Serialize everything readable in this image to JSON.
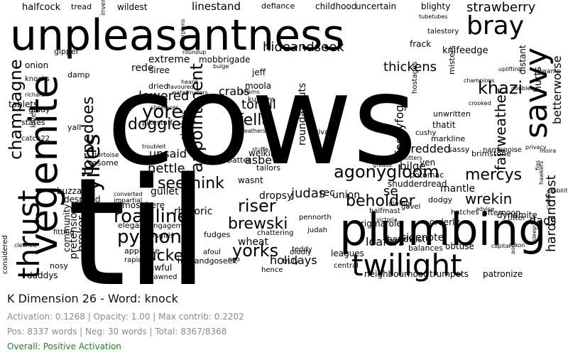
{
  "title": "K Dimension 26 - Word: knock",
  "stats_line1": "Activation: 0.1268 | Opacity: 1.00 | Max contrib: 0.2202",
  "stats_line2": "Pos: 8337 words | Neg: 30 words | Total: 8367/8368",
  "overall": "Overall: Positive Activation",
  "colors": {
    "word": "#000000",
    "background": "#ffffff",
    "title": "#111111",
    "stats": "#8a8a8a",
    "overall": "#1a8a1a"
  },
  "chart_data": {
    "type": "wordcloud",
    "words": [
      "cows",
      "til",
      "unpleasantness",
      "plumbing",
      "vegemite",
      "twilight",
      "thrust",
      "savvy",
      "bray",
      "champagne",
      "strawberry",
      "yikes",
      "torpedoes",
      "appointment",
      "hideandseek",
      "thickens",
      "agonygloom",
      "beholder",
      "roadline",
      "python",
      "brewski",
      "riser",
      "yorks",
      "mercys",
      "wrekin",
      "seethink",
      "fairweather",
      "shredded",
      "lowered",
      "yore",
      "doggie",
      "fella",
      "tonsil",
      "crabs",
      "khazi",
      "tucker",
      "broker",
      "pretension",
      "nettle",
      "unsaid",
      "judas",
      "dropsy",
      "sidenote",
      "loafers",
      "holidays",
      "wheat",
      "rigmarole",
      "dads",
      "knifeedge",
      "hurts",
      "betterworse",
      "hardandfast",
      "fogeyfog",
      "roundabouts",
      "clothes",
      "extreme",
      "mobbrigade",
      "linestand",
      "defiance",
      "childhood",
      "uncertain",
      "blighty",
      "halfcock",
      "tread",
      "onion",
      "rede",
      "misters",
      "frack",
      "distant",
      "swamp",
      "champions",
      "bilge",
      "brimstone",
      "mantle",
      "dynamite",
      "gullet",
      "atmosphere",
      "rhetoric",
      "asbe",
      "union",
      "rec",
      "se",
      "neighbourhood",
      "trumpets",
      "patronize",
      "leagues",
      "central",
      "truly",
      "hence",
      "ngo",
      "bendwist",
      "obtuse",
      "balances",
      "awful",
      "dawned",
      "applause",
      "rapid",
      "daddys",
      "nosy",
      "cleaned",
      "community",
      "buzzard",
      "despond",
      "impartial",
      "converted",
      "asome",
      "tortoise",
      "moola",
      "jeff",
      "yen",
      "sassy",
      "cushy",
      "thatit",
      "markline",
      "unwritten",
      "hostages",
      "private",
      "diddly",
      "judah",
      "fudges",
      "chattering",
      "pennorth",
      "wasnt",
      "afoul",
      "engagement",
      "elegant",
      "hideandgoseek",
      "teddy",
      "victoria",
      "diving",
      "orderly",
      "dodgy",
      "hatches",
      "advice",
      "gavel",
      "halfmast",
      "shudderdread",
      "tailors",
      "welkin",
      "batter",
      "siree",
      "dried",
      "pikestaff",
      "shoelaces",
      "feathers",
      "stuffe",
      "gipper",
      "damp",
      "heard",
      "knocks",
      "richard",
      "tablets",
      "giddy",
      "states",
      "catch22",
      "lover",
      "yall",
      "considered",
      "fitting",
      "boysgirls",
      "flavoured",
      "namenoise",
      "afternoon",
      "titter",
      "moira",
      "talestory",
      "tubetubes",
      "wildest",
      "invent",
      "scorpions",
      "roundup",
      "bulge",
      "kumara",
      "prisms",
      "watermaters",
      "troubleit",
      "potomac",
      "skitters",
      "grease",
      "crooked",
      "uplifting",
      "doubles",
      "hawkers",
      "liability",
      "privacy",
      "figs",
      "curtain",
      "aorta",
      "nikon",
      "capital",
      "sleepy"
    ]
  }
}
